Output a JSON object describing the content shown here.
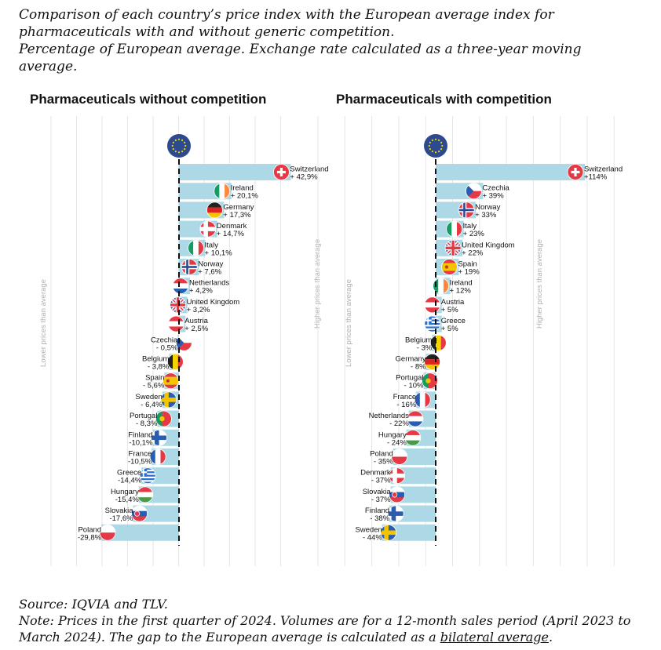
{
  "title_lines": [
    "Comparison of each country’s price index with the European average index for",
    "pharmaceuticals with and without generic competition.",
    "Percentage of European average. Exchange rate calculated as a three-year moving",
    "average."
  ],
  "footer": {
    "source": "Source: IQVIA and TLV.",
    "note_line1": "Note: Prices in the first quarter of 2024. Volumes are for a 12-month sales period (April 2023 to",
    "note_line2_prefix": "March 2024). The gap to the European average is calculated as a ",
    "note_link": "bilateral average",
    "note_suffix": "."
  },
  "colors": {
    "bar": "#add8e6",
    "eu_flag": "#2e4a8f",
    "eu_stars": "#f4d400",
    "grid": "#e6e6e6",
    "axis_text": "#b0b0b0"
  },
  "chart_data": [
    {
      "type": "bar",
      "orientation": "horizontal",
      "title": "Pharmaceuticals without competition",
      "lower_label": "Lower prices than average",
      "higher_label": "Higher prices than average",
      "reference": "European average",
      "series": [
        {
          "country": "Switzerland",
          "label": "+ 42,9%",
          "value": 42.9
        },
        {
          "country": "Ireland",
          "label": "+ 20,1%",
          "value": 20.1
        },
        {
          "country": "Germany",
          "label": "+ 17,3%",
          "value": 17.3
        },
        {
          "country": "Denmark",
          "label": "+ 14,7%",
          "value": 14.7
        },
        {
          "country": "Italy",
          "label": "+ 10,1%",
          "value": 10.1
        },
        {
          "country": "Norway",
          "label": "+ 7,6%",
          "value": 7.6
        },
        {
          "country": "Netherlands",
          "label": "+ 4,2%",
          "value": 4.2
        },
        {
          "country": "United Kingdom",
          "label": "+ 3,2%",
          "value": 3.2
        },
        {
          "country": "Austria",
          "label": "+ 2,5%",
          "value": 2.5
        },
        {
          "country": "Czechia",
          "label": "- 0,5%",
          "value": -0.5
        },
        {
          "country": "Belgium",
          "label": "- 3,8%",
          "value": -3.8
        },
        {
          "country": "Spain",
          "label": "- 5,6%",
          "value": -5.6
        },
        {
          "country": "Sweden",
          "label": "- 6,4%",
          "value": -6.4
        },
        {
          "country": "Portugal",
          "label": "- 8,3%",
          "value": -8.3
        },
        {
          "country": "Finland",
          "label": "-10,1%",
          "value": -10.1
        },
        {
          "country": "France",
          "label": "-10,5%",
          "value": -10.5
        },
        {
          "country": "Greece",
          "label": "-14,4%",
          "value": -14.4
        },
        {
          "country": "Hungary",
          "label": "-15,4%",
          "value": -15.4
        },
        {
          "country": "Slovakia",
          "label": "-17,6%",
          "value": -17.6
        },
        {
          "country": "Poland",
          "label": "-29,8%",
          "value": -29.8
        }
      ]
    },
    {
      "type": "bar",
      "orientation": "horizontal",
      "title": "Pharmaceuticals with competition",
      "lower_label": "Lower prices than average",
      "higher_label": "Higher prices than average",
      "reference": "European average",
      "series": [
        {
          "country": "Switzerland",
          "label": "+114%",
          "value": 114
        },
        {
          "country": "Czechia",
          "label": "+ 39%",
          "value": 39
        },
        {
          "country": "Norway",
          "label": "+ 33%",
          "value": 33
        },
        {
          "country": "Italy",
          "label": "+ 23%",
          "value": 23
        },
        {
          "country": "United Kingdom",
          "label": "+ 22%",
          "value": 22
        },
        {
          "country": "Spain",
          "label": "+ 19%",
          "value": 19
        },
        {
          "country": "Ireland",
          "label": "+ 12%",
          "value": 12
        },
        {
          "country": "Austria",
          "label": "+ 5%",
          "value": 5
        },
        {
          "country": "Greece",
          "label": "+ 5%",
          "value": 5
        },
        {
          "country": "Belgium",
          "label": "- 3%",
          "value": -3
        },
        {
          "country": "Germany",
          "label": "- 8%",
          "value": -8
        },
        {
          "country": "Portugal",
          "label": "- 10%",
          "value": -10
        },
        {
          "country": "France",
          "label": "- 16%",
          "value": -16
        },
        {
          "country": "Netherlands",
          "label": "- 22%",
          "value": -22
        },
        {
          "country": "Hungary",
          "label": "- 24%",
          "value": -24
        },
        {
          "country": "Poland",
          "label": "- 35%",
          "value": -35
        },
        {
          "country": "Denmark",
          "label": "- 37%",
          "value": -37
        },
        {
          "country": "Slovakia",
          "label": "- 37%",
          "value": -37
        },
        {
          "country": "Finland",
          "label": "- 38%",
          "value": -38
        },
        {
          "country": "Sweden",
          "label": "- 44%",
          "value": -44
        }
      ]
    }
  ]
}
